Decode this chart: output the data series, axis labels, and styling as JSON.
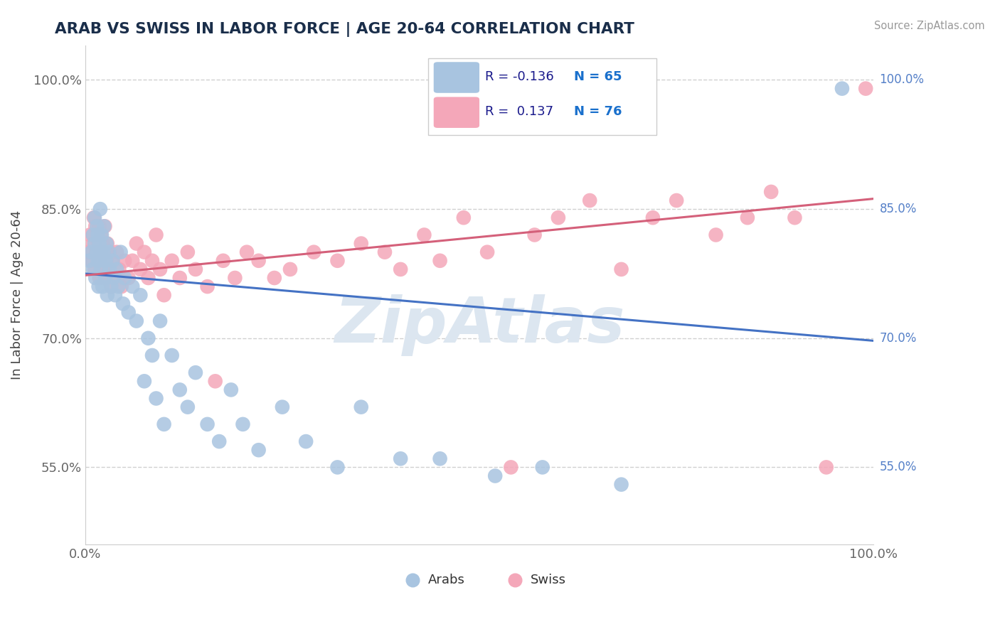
{
  "title": "ARAB VS SWISS IN LABOR FORCE | AGE 20-64 CORRELATION CHART",
  "source_text": "Source: ZipAtlas.com",
  "ylabel": "In Labor Force | Age 20-64",
  "xlim": [
    0.0,
    1.0
  ],
  "ylim": [
    0.46,
    1.04
  ],
  "x_tick_labels": [
    "0.0%",
    "100.0%"
  ],
  "y_tick_labels": [
    "55.0%",
    "70.0%",
    "85.0%",
    "100.0%"
  ],
  "y_tick_values": [
    0.55,
    0.7,
    0.85,
    1.0
  ],
  "legend_arab_R": "-0.136",
  "legend_arab_N": "65",
  "legend_swiss_R": "0.137",
  "legend_swiss_N": "76",
  "arab_color": "#a8c4e0",
  "swiss_color": "#f4a7b9",
  "arab_line_color": "#4472c4",
  "swiss_line_color": "#d4607a",
  "title_color": "#1a2e4a",
  "watermark_text": "ZipAtlas",
  "arab_line_x0": 0.0,
  "arab_line_y0": 0.775,
  "arab_line_x1": 1.0,
  "arab_line_y1": 0.697,
  "swiss_line_x0": 0.0,
  "swiss_line_y0": 0.773,
  "swiss_line_x1": 1.0,
  "swiss_line_y1": 0.862,
  "arab_x": [
    0.005,
    0.008,
    0.01,
    0.01,
    0.012,
    0.012,
    0.013,
    0.015,
    0.015,
    0.016,
    0.016,
    0.017,
    0.018,
    0.018,
    0.019,
    0.02,
    0.02,
    0.021,
    0.022,
    0.023,
    0.024,
    0.025,
    0.026,
    0.027,
    0.028,
    0.03,
    0.031,
    0.033,
    0.035,
    0.036,
    0.038,
    0.04,
    0.042,
    0.045,
    0.048,
    0.05,
    0.055,
    0.06,
    0.065,
    0.07,
    0.075,
    0.08,
    0.085,
    0.09,
    0.095,
    0.1,
    0.11,
    0.12,
    0.13,
    0.14,
    0.155,
    0.17,
    0.185,
    0.2,
    0.22,
    0.25,
    0.28,
    0.32,
    0.35,
    0.4,
    0.45,
    0.52,
    0.58,
    0.68,
    0.96
  ],
  "arab_y": [
    0.79,
    0.8,
    0.82,
    0.78,
    0.84,
    0.81,
    0.77,
    0.8,
    0.83,
    0.79,
    0.82,
    0.76,
    0.81,
    0.79,
    0.85,
    0.8,
    0.78,
    0.82,
    0.76,
    0.8,
    0.83,
    0.77,
    0.79,
    0.81,
    0.75,
    0.8,
    0.78,
    0.76,
    0.79,
    0.77,
    0.75,
    0.78,
    0.76,
    0.8,
    0.74,
    0.77,
    0.73,
    0.76,
    0.72,
    0.75,
    0.65,
    0.7,
    0.68,
    0.63,
    0.72,
    0.6,
    0.68,
    0.64,
    0.62,
    0.66,
    0.6,
    0.58,
    0.64,
    0.6,
    0.57,
    0.62,
    0.58,
    0.55,
    0.62,
    0.56,
    0.56,
    0.54,
    0.55,
    0.53,
    0.99
  ],
  "swiss_x": [
    0.004,
    0.006,
    0.008,
    0.01,
    0.011,
    0.012,
    0.013,
    0.014,
    0.015,
    0.016,
    0.017,
    0.018,
    0.018,
    0.019,
    0.02,
    0.021,
    0.022,
    0.023,
    0.024,
    0.025,
    0.026,
    0.027,
    0.028,
    0.03,
    0.031,
    0.033,
    0.035,
    0.037,
    0.04,
    0.043,
    0.046,
    0.05,
    0.055,
    0.06,
    0.065,
    0.07,
    0.075,
    0.08,
    0.085,
    0.09,
    0.095,
    0.1,
    0.11,
    0.12,
    0.13,
    0.14,
    0.155,
    0.165,
    0.175,
    0.19,
    0.205,
    0.22,
    0.24,
    0.26,
    0.29,
    0.32,
    0.35,
    0.38,
    0.4,
    0.43,
    0.45,
    0.48,
    0.51,
    0.54,
    0.57,
    0.6,
    0.64,
    0.68,
    0.72,
    0.75,
    0.8,
    0.84,
    0.87,
    0.9,
    0.94,
    0.99
  ],
  "swiss_y": [
    0.8,
    0.82,
    0.79,
    0.81,
    0.84,
    0.78,
    0.83,
    0.8,
    0.82,
    0.79,
    0.81,
    0.77,
    0.83,
    0.8,
    0.82,
    0.79,
    0.81,
    0.78,
    0.8,
    0.83,
    0.77,
    0.79,
    0.81,
    0.78,
    0.8,
    0.76,
    0.79,
    0.77,
    0.8,
    0.78,
    0.76,
    0.79,
    0.77,
    0.79,
    0.81,
    0.78,
    0.8,
    0.77,
    0.79,
    0.82,
    0.78,
    0.75,
    0.79,
    0.77,
    0.8,
    0.78,
    0.76,
    0.65,
    0.79,
    0.77,
    0.8,
    0.79,
    0.77,
    0.78,
    0.8,
    0.79,
    0.81,
    0.8,
    0.78,
    0.82,
    0.79,
    0.84,
    0.8,
    0.55,
    0.82,
    0.84,
    0.86,
    0.78,
    0.84,
    0.86,
    0.82,
    0.84,
    0.87,
    0.84,
    0.55,
    0.99
  ],
  "grid_color": "#d0d0d0",
  "background_color": "#ffffff",
  "watermark_color": "#dce6f0",
  "right_label_color": "#5580c8"
}
